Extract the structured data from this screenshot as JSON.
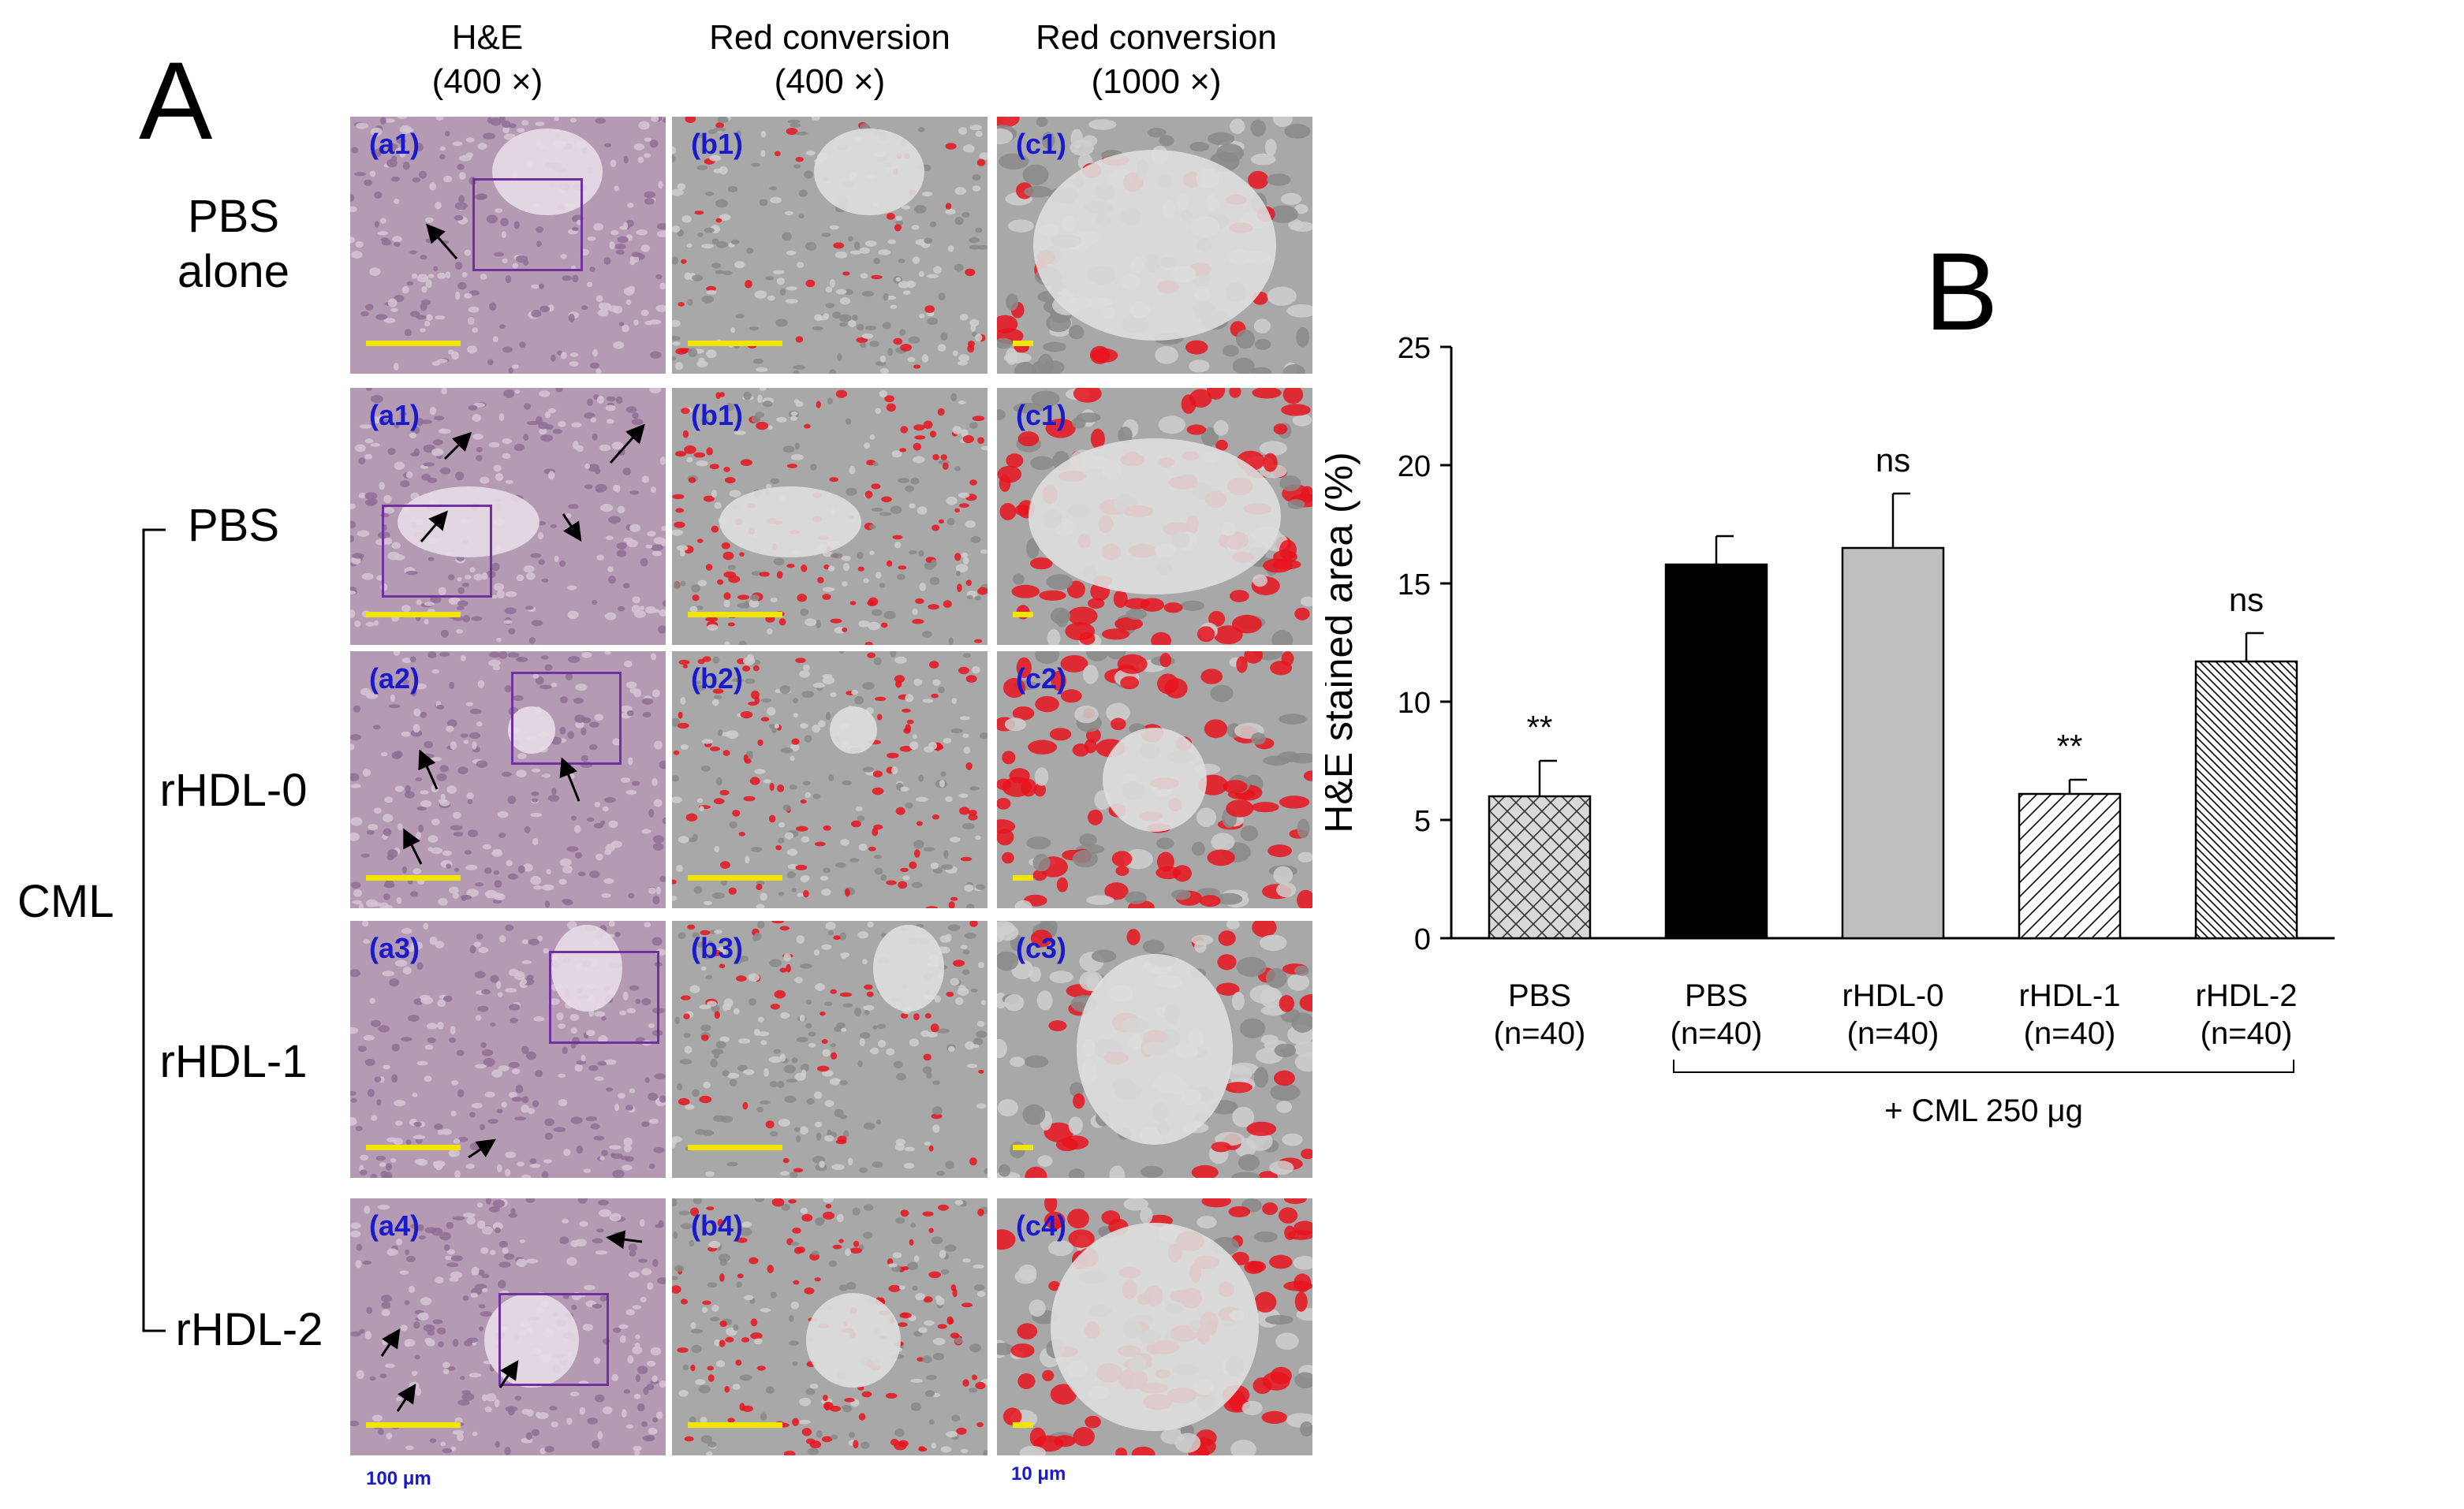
{
  "panel_a": {
    "letter": "A",
    "columns": [
      {
        "title": "H&E",
        "subtitle": "(400 ×)"
      },
      {
        "title": "Red conversion",
        "subtitle": "(400 ×)"
      },
      {
        "title": "Red conversion",
        "subtitle": "(1000 ×)"
      }
    ],
    "rows": [
      {
        "label_line1": "PBS",
        "label_line2": "alone",
        "tiles": [
          "(a1)",
          "(b1)",
          "(c1)"
        ]
      },
      {
        "label_line1": "PBS",
        "label_line2": "",
        "tiles": [
          "(a1)",
          "(b1)",
          "(c1)"
        ]
      },
      {
        "label_line1": "rHDL-0",
        "label_line2": "",
        "tiles": [
          "(a2)",
          "(b2)",
          "(c2)"
        ]
      },
      {
        "label_line1": "rHDL-1",
        "label_line2": "",
        "tiles": [
          "(a3)",
          "(b3)",
          "(c3)"
        ]
      },
      {
        "label_line1": "rHDL-2",
        "label_line2": "",
        "tiles": [
          "(a4)",
          "(b4)",
          "(c4)"
        ]
      }
    ],
    "group_label": "CML",
    "scale_left": "100 μm",
    "scale_right": "10 μm",
    "colors": {
      "tile_label": "#1a1acc",
      "scalebar": "#f2e600",
      "box": "#7030a0",
      "red": "#e8141e"
    }
  },
  "panel_b": {
    "letter": "B"
  },
  "chart_data": {
    "type": "bar",
    "title": "",
    "ylabel": "H&E stained area (%)",
    "xlabel": "",
    "ylim": [
      0,
      25
    ],
    "yticks": [
      0,
      5,
      10,
      15,
      20,
      25
    ],
    "categories": [
      {
        "name": "PBS",
        "n": "(n=40)"
      },
      {
        "name": "PBS",
        "n": "(n=40)"
      },
      {
        "name": "rHDL-0",
        "n": "(n=40)"
      },
      {
        "name": "rHDL-1",
        "n": "(n=40)"
      },
      {
        "name": "rHDL-2",
        "n": "(n=40)"
      }
    ],
    "values": [
      6.0,
      15.8,
      16.5,
      6.1,
      11.7
    ],
    "errors": [
      1.5,
      1.2,
      2.3,
      0.6,
      1.2
    ],
    "significance": [
      "**",
      "",
      "ns",
      "**",
      "ns"
    ],
    "fills": [
      "crosshatch",
      "black",
      "gray",
      "diagonal",
      "dense-diagonal"
    ],
    "group_bracket_label": "+ CML 250 μg",
    "bracket_from": 1,
    "bracket_to": 4
  }
}
